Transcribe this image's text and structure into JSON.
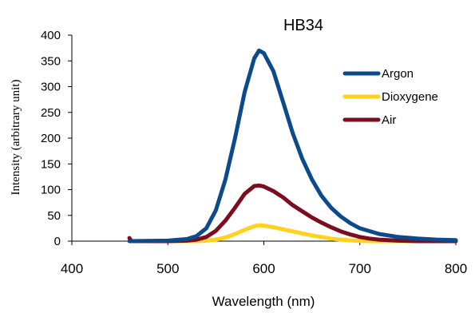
{
  "chart_data": {
    "type": "line",
    "title": "HB34",
    "xlabel": "Wavelength (nm)",
    "ylabel": "Intensity (arbitrary unit)",
    "xlim": [
      400,
      800
    ],
    "ylim": [
      0,
      400
    ],
    "xticks": [
      400,
      500,
      600,
      700,
      800
    ],
    "yticks": [
      0,
      50,
      100,
      150,
      200,
      250,
      300,
      350,
      400
    ],
    "grid": false,
    "legend_position": "right",
    "series": [
      {
        "name": "Argon",
        "color": "#0d4a8c",
        "x": [
          460,
          500,
          520,
          530,
          540,
          550,
          560,
          570,
          580,
          590,
          595,
          600,
          610,
          620,
          630,
          640,
          650,
          660,
          670,
          680,
          690,
          700,
          720,
          740,
          760,
          780,
          800
        ],
        "y": [
          0,
          1,
          4,
          10,
          25,
          60,
          120,
          200,
          290,
          355,
          370,
          365,
          330,
          270,
          210,
          160,
          120,
          88,
          65,
          48,
          35,
          25,
          14,
          8,
          5,
          3,
          2
        ]
      },
      {
        "name": "Dioxygene",
        "color": "#ffd21f",
        "x": [
          460,
          500,
          530,
          540,
          550,
          560,
          570,
          580,
          590,
          595,
          600,
          610,
          620,
          630,
          640,
          650,
          660,
          670,
          680,
          690,
          700,
          710,
          720,
          740,
          760,
          780,
          800
        ],
        "y": [
          0,
          0,
          0,
          1,
          3,
          7,
          14,
          22,
          29,
          31,
          30,
          27,
          23,
          19,
          15,
          11,
          8,
          5,
          3,
          1.5,
          0.5,
          0,
          0,
          0,
          0,
          0,
          0
        ]
      },
      {
        "name": "Air",
        "color": "#7b0d1f",
        "x": [
          460,
          462,
          500,
          520,
          530,
          540,
          550,
          560,
          570,
          580,
          590,
          595,
          600,
          610,
          620,
          630,
          640,
          650,
          660,
          670,
          680,
          690,
          700,
          710,
          720,
          740,
          760,
          780,
          800
        ],
        "y": [
          6,
          0,
          0,
          1,
          3,
          8,
          20,
          40,
          65,
          92,
          107,
          108,
          106,
          97,
          85,
          70,
          58,
          46,
          36,
          27,
          19,
          13,
          8,
          5,
          3,
          1,
          0,
          0,
          0
        ]
      }
    ]
  }
}
